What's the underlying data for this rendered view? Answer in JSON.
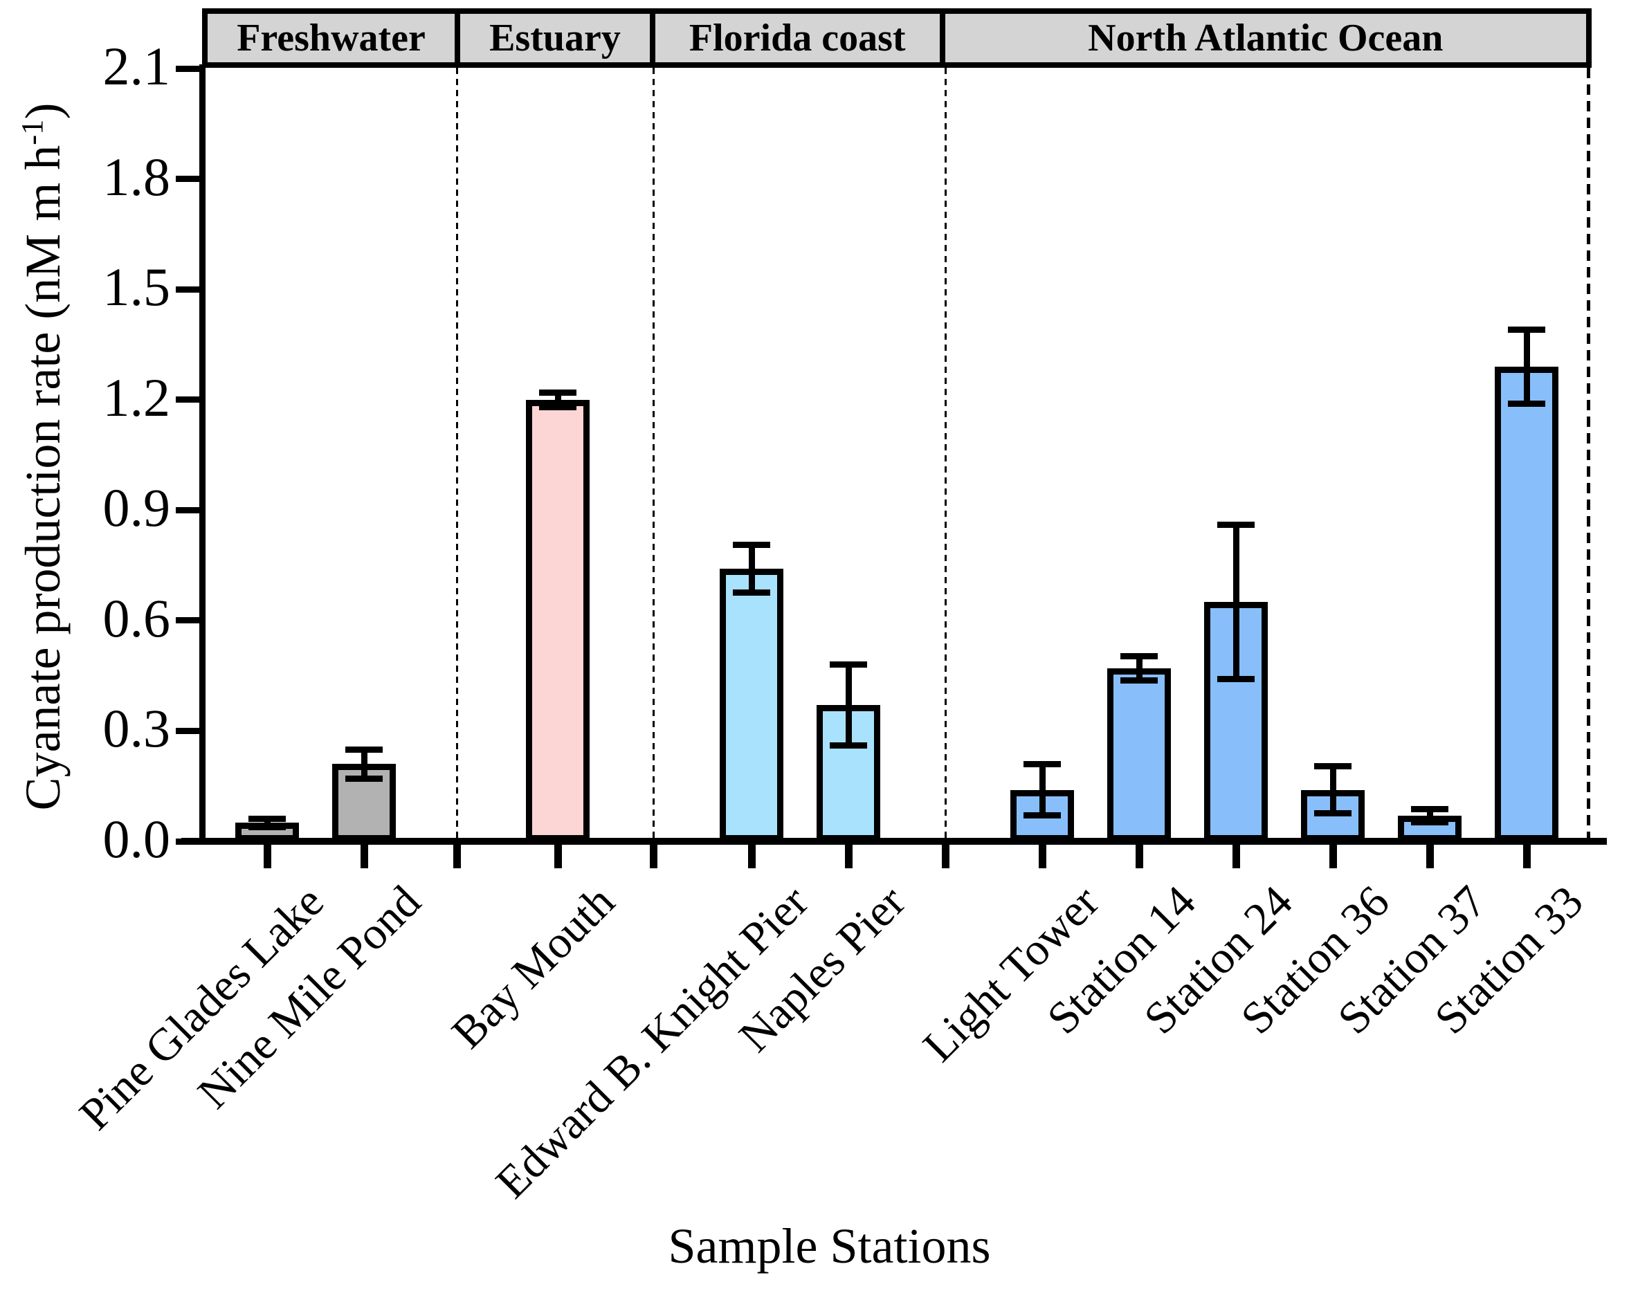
{
  "figure": {
    "y_axis_title_prefix": "Cyanate production rate (nM m h",
    "y_axis_title_sup": "-1",
    "y_axis_title_suffix": ")",
    "x_axis_title": "Sample Stations",
    "colors": {
      "freshwater_fill": "#b2b2b2",
      "estuary_fill": "#fcd6d4",
      "florida_fill": "#a9e2fc",
      "atlantic_fill": "#88bffa",
      "header_band": "#d4d4d4",
      "line": "#000000"
    }
  },
  "chart_data": {
    "type": "bar",
    "title": "",
    "xlabel": "Sample Stations",
    "ylabel": "Cyanate production rate (nM m h-1)",
    "ylim": [
      0,
      2.1
    ],
    "ytick_labels": [
      "0.0",
      "0.3",
      "0.6",
      "0.9",
      "1.2",
      "1.5",
      "1.8",
      "2.1"
    ],
    "grid": false,
    "error_bars": true,
    "groups": [
      {
        "name": "Freshwater",
        "color": "#b2b2b2",
        "bars": [
          {
            "label": "Pine Glades Lake",
            "value": 0.05,
            "error": 0.012
          },
          {
            "label": "Nine Mile Pond",
            "value": 0.21,
            "error": 0.04
          }
        ]
      },
      {
        "name": "Estuary",
        "color": "#fcd6d4",
        "bars": [
          {
            "label": "Bay Mouth",
            "value": 1.2,
            "error": 0.02
          }
        ]
      },
      {
        "name": "Florida coast",
        "color": "#a9e2fc",
        "bars": [
          {
            "label": "Edward B. Knight Pier",
            "value": 0.74,
            "error": 0.065
          },
          {
            "label": "Naples Pier",
            "value": 0.37,
            "error": 0.11
          }
        ]
      },
      {
        "name": "North Atlantic Ocean",
        "color": "#88bffa",
        "bars": [
          {
            "label": "Light Tower",
            "value": 0.14,
            "error": 0.07
          },
          {
            "label": "Station 14",
            "value": 0.47,
            "error": 0.033
          },
          {
            "label": "Station 24",
            "value": 0.65,
            "error": 0.21
          },
          {
            "label": "Station 36",
            "value": 0.14,
            "error": 0.064
          },
          {
            "label": "Station 37",
            "value": 0.07,
            "error": 0.018
          },
          {
            "label": "Station 33",
            "value": 1.29,
            "error": 0.1
          }
        ]
      }
    ]
  }
}
